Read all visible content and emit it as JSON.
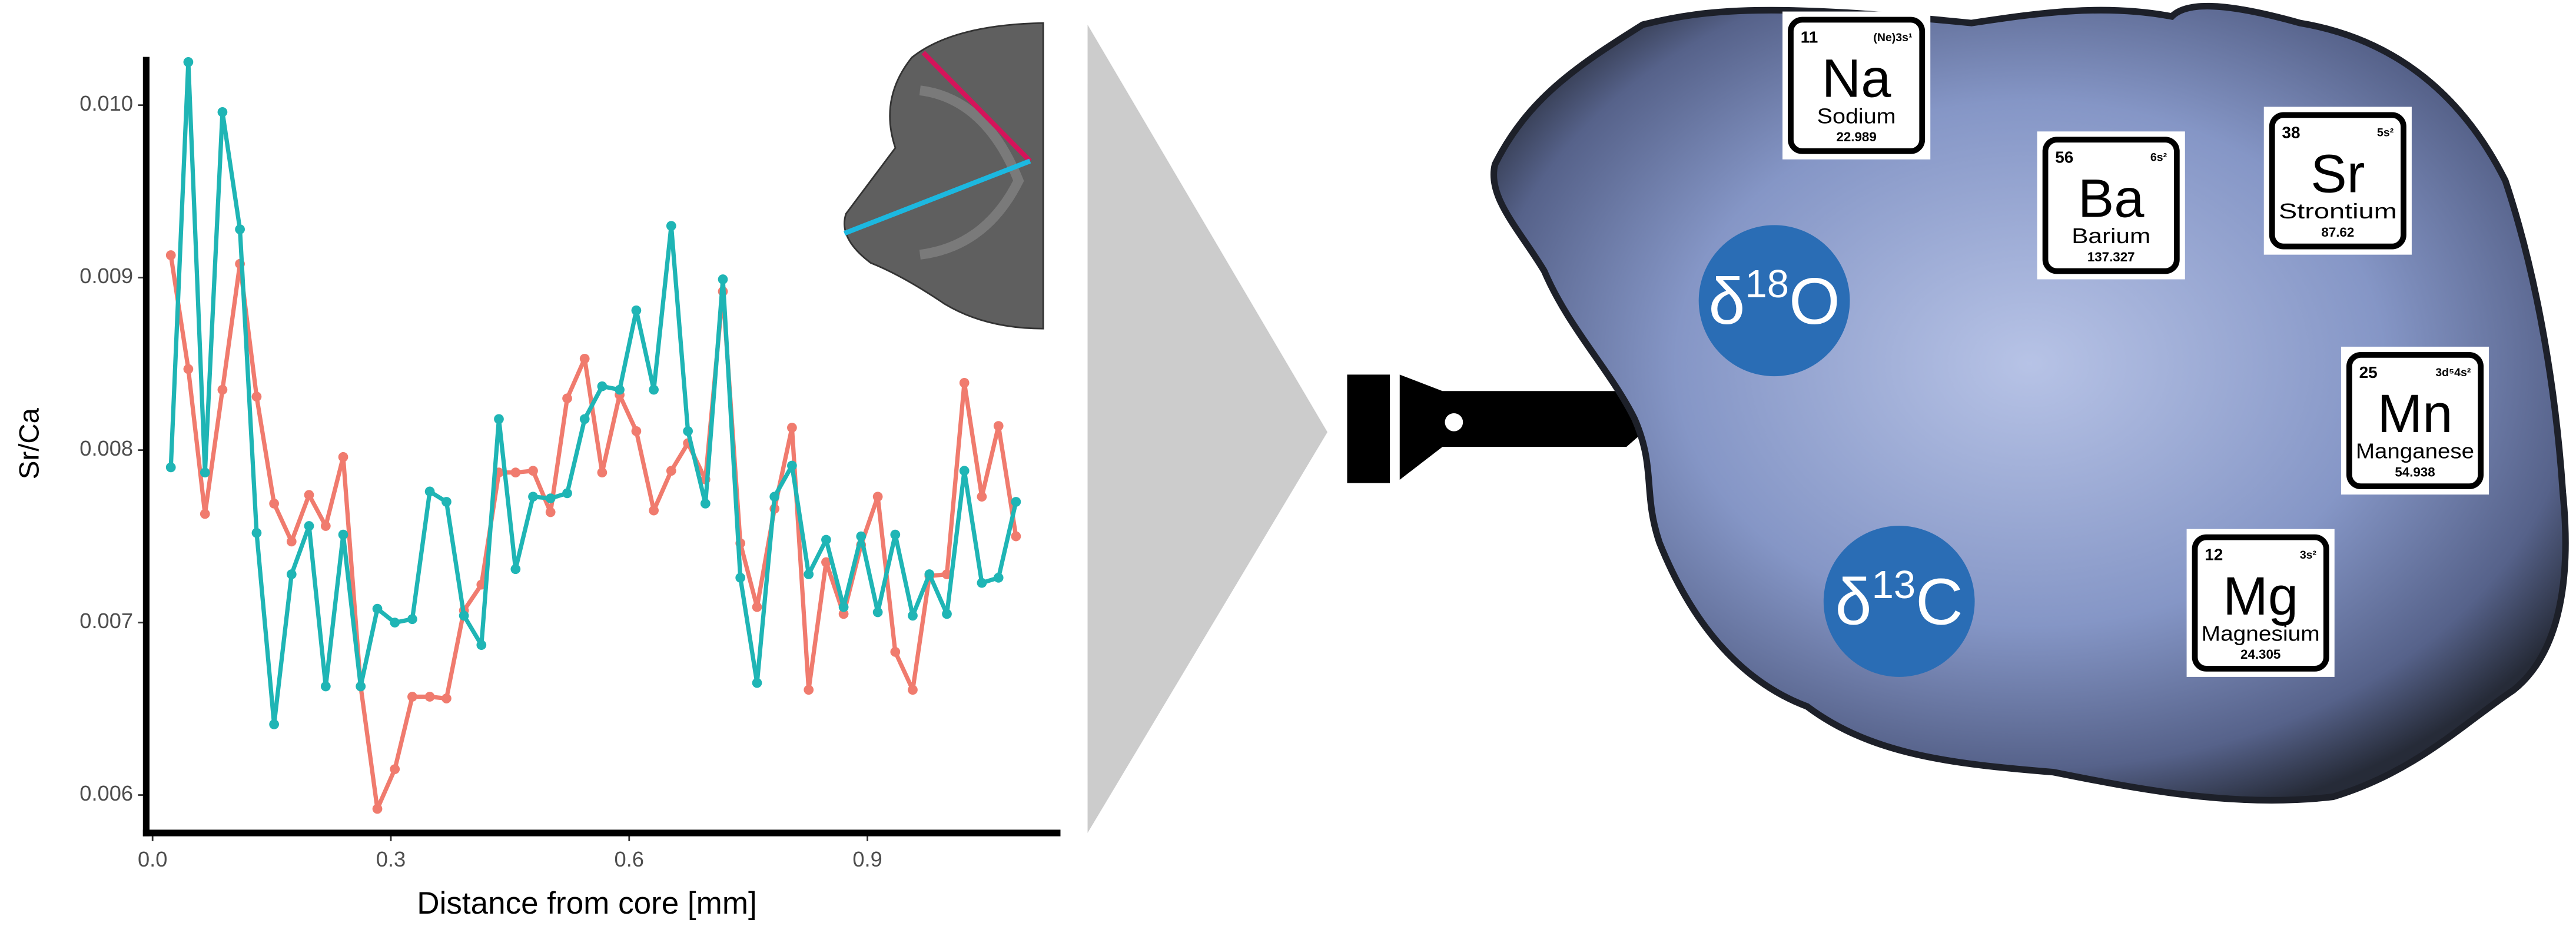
{
  "chart_data": {
    "type": "line",
    "x_label": "Distance from core [mm]",
    "y_label": "Sr/Ca",
    "x": [
      0.023,
      0.045,
      0.066,
      0.088,
      0.11,
      0.131,
      0.153,
      0.175,
      0.197,
      0.218,
      0.24,
      0.262,
      0.283,
      0.305,
      0.327,
      0.349,
      0.37,
      0.392,
      0.414,
      0.436,
      0.457,
      0.479,
      0.501,
      0.522,
      0.544,
      0.566,
      0.588,
      0.609,
      0.631,
      0.653,
      0.674,
      0.696,
      0.718,
      0.74,
      0.761,
      0.783,
      0.805,
      0.826,
      0.848,
      0.87,
      0.892,
      0.913,
      0.935,
      0.957,
      0.978,
      1.0,
      1.022,
      1.044,
      1.065,
      1.087
    ],
    "series": [
      {
        "color": "#f07b6e",
        "values": [
          0.00913,
          0.00847,
          0.00763,
          0.00835,
          0.00908,
          0.00831,
          0.00769,
          0.00747,
          0.00774,
          0.00756,
          0.00796,
          0.00663,
          0.00592,
          0.00615,
          0.00657,
          0.00657,
          0.00656,
          0.00707,
          0.00722,
          0.00787,
          0.00787,
          0.00788,
          0.00764,
          0.0083,
          0.00853,
          0.00787,
          0.00832,
          0.00811,
          0.00765,
          0.00788,
          0.00804,
          0.00783,
          0.00892,
          0.00746,
          0.00709,
          0.00766,
          0.00813,
          0.00661,
          0.00735,
          0.00705,
          0.00745,
          0.00773,
          0.00683,
          0.00661,
          0.00727,
          0.00728,
          0.00839,
          0.00773,
          0.00814,
          0.0075
        ]
      },
      {
        "color": "#1fb5b5",
        "values": [
          0.0079,
          0.01025,
          0.00787,
          0.00996,
          0.00928,
          0.00752,
          0.00641,
          0.00728,
          0.00756,
          0.00663,
          0.00751,
          0.00663,
          0.00708,
          0.007,
          0.00702,
          0.00776,
          0.0077,
          0.00704,
          0.00687,
          0.00818,
          0.00731,
          0.00773,
          0.00772,
          0.00775,
          0.00818,
          0.00837,
          0.00835,
          0.00881,
          0.00835,
          0.0093,
          0.00811,
          0.00769,
          0.00899,
          0.00726,
          0.00665,
          0.00773,
          0.00791,
          0.00728,
          0.00748,
          0.00709,
          0.0075,
          0.00706,
          0.00751,
          0.00704,
          0.00728,
          0.00705,
          0.00788,
          0.00723,
          0.00726,
          0.0077
        ]
      }
    ],
    "xlim": [
      -0.008,
      1.143
    ],
    "ylim": [
      0.00578,
      0.01028
    ],
    "xticks": [
      {
        "value": 0,
        "label": "0.0"
      },
      0.3,
      0.6,
      0.9
    ],
    "yticks": [
      0.006,
      0.007,
      0.008,
      0.009,
      {
        "value": 0.01,
        "label": "0.010"
      }
    ]
  },
  "illustration": {
    "elements": [
      {
        "number": "11",
        "config": "(Ne)3s¹",
        "symbol": "Na",
        "name": "Sodium",
        "mass": "22.989"
      },
      {
        "number": "56",
        "config": "6s²",
        "symbol": "Ba",
        "name": "Barium",
        "mass": "137.327"
      },
      {
        "number": "38",
        "config": "5s²",
        "symbol": "Sr",
        "name": "Strontium",
        "mass": "87.62"
      },
      {
        "number": "25",
        "config": "3d⁵4s²",
        "symbol": "Mn",
        "name": "Manganese",
        "mass": "54.938"
      },
      {
        "number": "12",
        "config": "3s²",
        "symbol": "Mg",
        "name": "Magnesium",
        "mass": "24.305"
      }
    ],
    "isotopes": [
      {
        "prefix": "δ",
        "mass": "18",
        "element": "O"
      },
      {
        "prefix": "δ",
        "mass": "13",
        "element": "C"
      }
    ]
  }
}
